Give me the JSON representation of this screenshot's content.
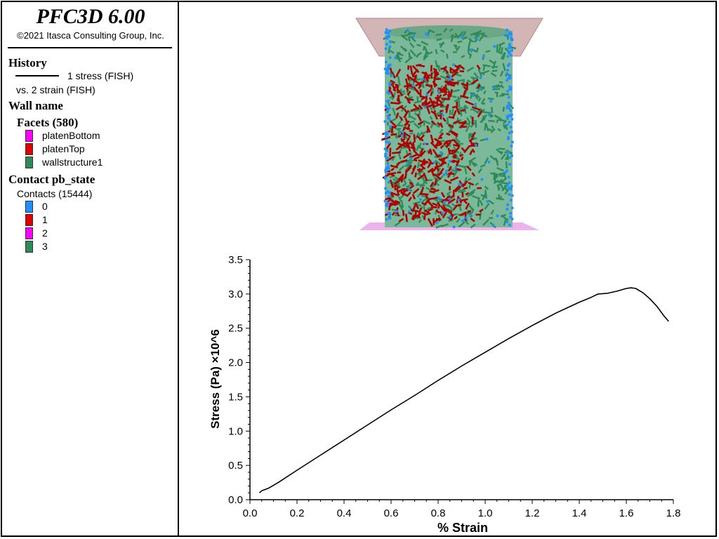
{
  "app": {
    "title": "PFC3D 6.00",
    "copyright": "©2021 Itasca Consulting Group, Inc."
  },
  "legend": {
    "history_heading": "History",
    "history_y": "1 stress (FISH)",
    "history_x": "vs. 2 strain (FISH)",
    "wall_heading": "Wall name",
    "facets_heading": "Facets (580)",
    "facets": [
      {
        "label": "platenBottom",
        "color": "#ff00ff"
      },
      {
        "label": "platenTop",
        "color": "#e00000"
      },
      {
        "label": "wallstructure1",
        "color": "#2e8b57"
      }
    ],
    "contact_heading": "Contact pb_state",
    "contacts_label": "Contacts (15444)",
    "contacts": [
      {
        "label": "0",
        "color": "#1e90ff"
      },
      {
        "label": "1",
        "color": "#e00000"
      },
      {
        "label": "2",
        "color": "#ff00ff"
      },
      {
        "label": "3",
        "color": "#2e8b57"
      }
    ]
  },
  "model_view": {
    "colors": {
      "platen_top": "#c9a3a3",
      "platen_bottom": "#e9a6e9",
      "bonds_intact": "#2e8b57",
      "bonds_broken": "#b00000",
      "contacts": "#1e90ff"
    }
  },
  "chart_data": {
    "type": "line",
    "title": "",
    "xlabel": "% Strain",
    "ylabel": "Stress (Pa) ×10^6",
    "xlim": [
      0.0,
      1.8
    ],
    "ylim": [
      0.0,
      3.5
    ],
    "xticks": [
      "0.0",
      "0.2",
      "0.4",
      "0.6",
      "0.8",
      "1.0",
      "1.2",
      "1.4",
      "1.6",
      "1.8"
    ],
    "yticks": [
      "0.0",
      "0.5",
      "1.0",
      "1.5",
      "2.0",
      "2.5",
      "3.0",
      "3.5"
    ],
    "grid": false,
    "series": [
      {
        "color": "#000000",
        "x": [
          0.04,
          0.05,
          0.08,
          0.12,
          0.2,
          0.3,
          0.4,
          0.5,
          0.6,
          0.7,
          0.8,
          0.9,
          1.0,
          1.1,
          1.2,
          1.3,
          1.35,
          1.4,
          1.45,
          1.48,
          1.52,
          1.56,
          1.6,
          1.62,
          1.64,
          1.67,
          1.7,
          1.73,
          1.76,
          1.78
        ],
        "y": [
          0.1,
          0.13,
          0.17,
          0.25,
          0.43,
          0.65,
          0.87,
          1.09,
          1.31,
          1.52,
          1.74,
          1.95,
          2.15,
          2.35,
          2.54,
          2.72,
          2.8,
          2.88,
          2.95,
          3.0,
          3.01,
          3.04,
          3.08,
          3.09,
          3.08,
          3.02,
          2.93,
          2.82,
          2.68,
          2.6
        ]
      }
    ]
  }
}
